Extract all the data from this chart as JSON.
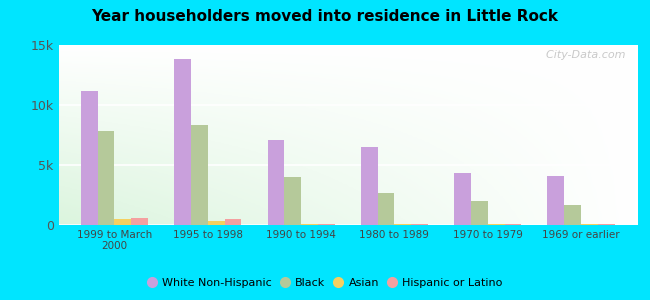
{
  "title": "Year householders moved into residence in Little Rock",
  "categories": [
    "1999 to March\n2000",
    "1995 to 1998",
    "1990 to 1994",
    "1980 to 1989",
    "1970 to 1979",
    "1969 or earlier"
  ],
  "series": {
    "White Non-Hispanic": [
      11200,
      13800,
      7100,
      6500,
      4300,
      4100
    ],
    "Black": [
      7800,
      8300,
      4000,
      2700,
      2000,
      1700
    ],
    "Asian": [
      500,
      300,
      100,
      100,
      50,
      50
    ],
    "Hispanic or Latino": [
      600,
      500,
      100,
      100,
      50,
      50
    ]
  },
  "colors": {
    "White Non-Hispanic": "#c9a0dc",
    "Black": "#b5c99a",
    "Asian": "#f5d060",
    "Hispanic or Latino": "#f4a0a0"
  },
  "ylim": [
    0,
    15000
  ],
  "yticks": [
    0,
    5000,
    10000,
    15000
  ],
  "ytick_labels": [
    "0",
    "5k",
    "10k",
    "15k"
  ],
  "background_outer": "#00e5ff",
  "watermark": "  City-Data.com",
  "bar_width": 0.18
}
